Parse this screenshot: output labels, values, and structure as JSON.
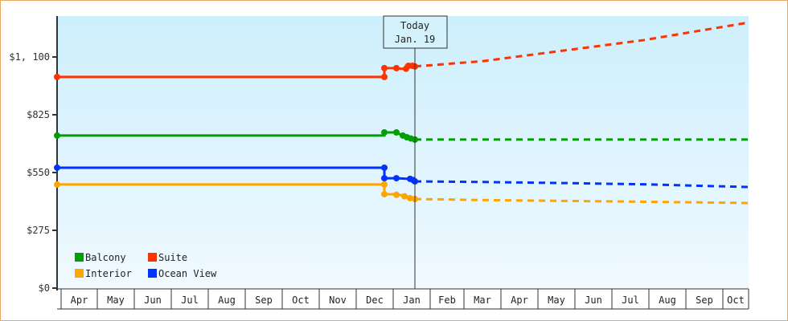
{
  "chart_data": {
    "type": "line",
    "title": "",
    "xlabel": "",
    "ylabel": "",
    "ylim": [
      0,
      1300
    ],
    "y_ticks": [
      {
        "value": 0,
        "label": "$0"
      },
      {
        "value": 275,
        "label": "$275"
      },
      {
        "value": 550,
        "label": "$550"
      },
      {
        "value": 825,
        "label": "$825"
      },
      {
        "value": 1100,
        "label": "$1, 100"
      }
    ],
    "x_months": [
      "Apr",
      "May",
      "Jun",
      "Jul",
      "Aug",
      "Sep",
      "Oct",
      "Nov",
      "Dec",
      "Jan",
      "Feb",
      "Mar",
      "Apr",
      "May",
      "Jun",
      "Jul",
      "Aug",
      "Sep",
      "Oct"
    ],
    "month_edges": [
      76,
      121,
      167,
      213,
      259,
      305,
      351,
      397,
      443,
      489,
      535,
      577,
      623,
      669,
      715,
      761,
      807,
      853,
      899,
      931
    ],
    "today_marker": {
      "line1": "Today",
      "line2": "Jan. 19",
      "x": 516
    },
    "legend": [
      {
        "name": "Balcony",
        "color": "#00a000"
      },
      {
        "name": "Suite",
        "color": "#ff3300"
      },
      {
        "name": "Interior",
        "color": "#ffa500"
      },
      {
        "name": "Ocean View",
        "color": "#0033ff"
      }
    ],
    "series": [
      {
        "name": "Suite",
        "color": "#ff3300",
        "history": [
          [
            71,
            1005
          ],
          [
            478,
            1005
          ],
          [
            478,
            1047
          ],
          [
            493,
            1047
          ],
          [
            493,
            1044
          ],
          [
            505,
            1044
          ],
          [
            505,
            1058
          ],
          [
            516,
            1058
          ]
        ],
        "markers": [
          [
            71,
            1005
          ],
          [
            478,
            1005
          ],
          [
            478,
            1047
          ],
          [
            493,
            1047
          ],
          [
            505,
            1044
          ],
          [
            508,
            1058
          ],
          [
            513,
            1058
          ],
          [
            516,
            1055
          ]
        ],
        "forecast": [
          [
            516,
            1055
          ],
          [
            600,
            1080
          ],
          [
            700,
            1130
          ],
          [
            800,
            1180
          ],
          [
            931,
            1264
          ]
        ]
      },
      {
        "name": "Balcony",
        "color": "#00a000",
        "history": [
          [
            71,
            726
          ],
          [
            478,
            726
          ],
          [
            478,
            741
          ],
          [
            493,
            741
          ],
          [
            500,
            727
          ],
          [
            508,
            718
          ],
          [
            516,
            707
          ]
        ],
        "markers": [
          [
            71,
            726
          ],
          [
            478,
            741
          ],
          [
            493,
            741
          ],
          [
            501,
            726
          ],
          [
            506,
            718
          ],
          [
            511,
            712
          ],
          [
            516,
            707
          ]
        ],
        "forecast": [
          [
            516,
            707
          ],
          [
            931,
            707
          ]
        ]
      },
      {
        "name": "Ocean View",
        "color": "#0033ff",
        "history": [
          [
            71,
            573
          ],
          [
            478,
            573
          ],
          [
            478,
            523
          ],
          [
            493,
            523
          ],
          [
            508,
            520
          ],
          [
            516,
            508
          ]
        ],
        "markers": [
          [
            71,
            573
          ],
          [
            478,
            573
          ],
          [
            478,
            523
          ],
          [
            493,
            523
          ],
          [
            510,
            520
          ],
          [
            514,
            514
          ],
          [
            516,
            508
          ]
        ],
        "forecast": [
          [
            516,
            508
          ],
          [
            600,
            505
          ],
          [
            700,
            500
          ],
          [
            800,
            494
          ],
          [
            931,
            481
          ]
        ]
      },
      {
        "name": "Interior",
        "color": "#ffa500",
        "history": [
          [
            71,
            493
          ],
          [
            478,
            493
          ],
          [
            478,
            447
          ],
          [
            493,
            447
          ],
          [
            505,
            437
          ],
          [
            516,
            424
          ]
        ],
        "markers": [
          [
            71,
            493
          ],
          [
            478,
            493
          ],
          [
            478,
            447
          ],
          [
            493,
            444
          ],
          [
            503,
            437
          ],
          [
            510,
            428
          ],
          [
            516,
            424
          ]
        ],
        "forecast": [
          [
            516,
            424
          ],
          [
            600,
            419
          ],
          [
            700,
            415
          ],
          [
            800,
            411
          ],
          [
            931,
            405
          ]
        ]
      }
    ]
  }
}
